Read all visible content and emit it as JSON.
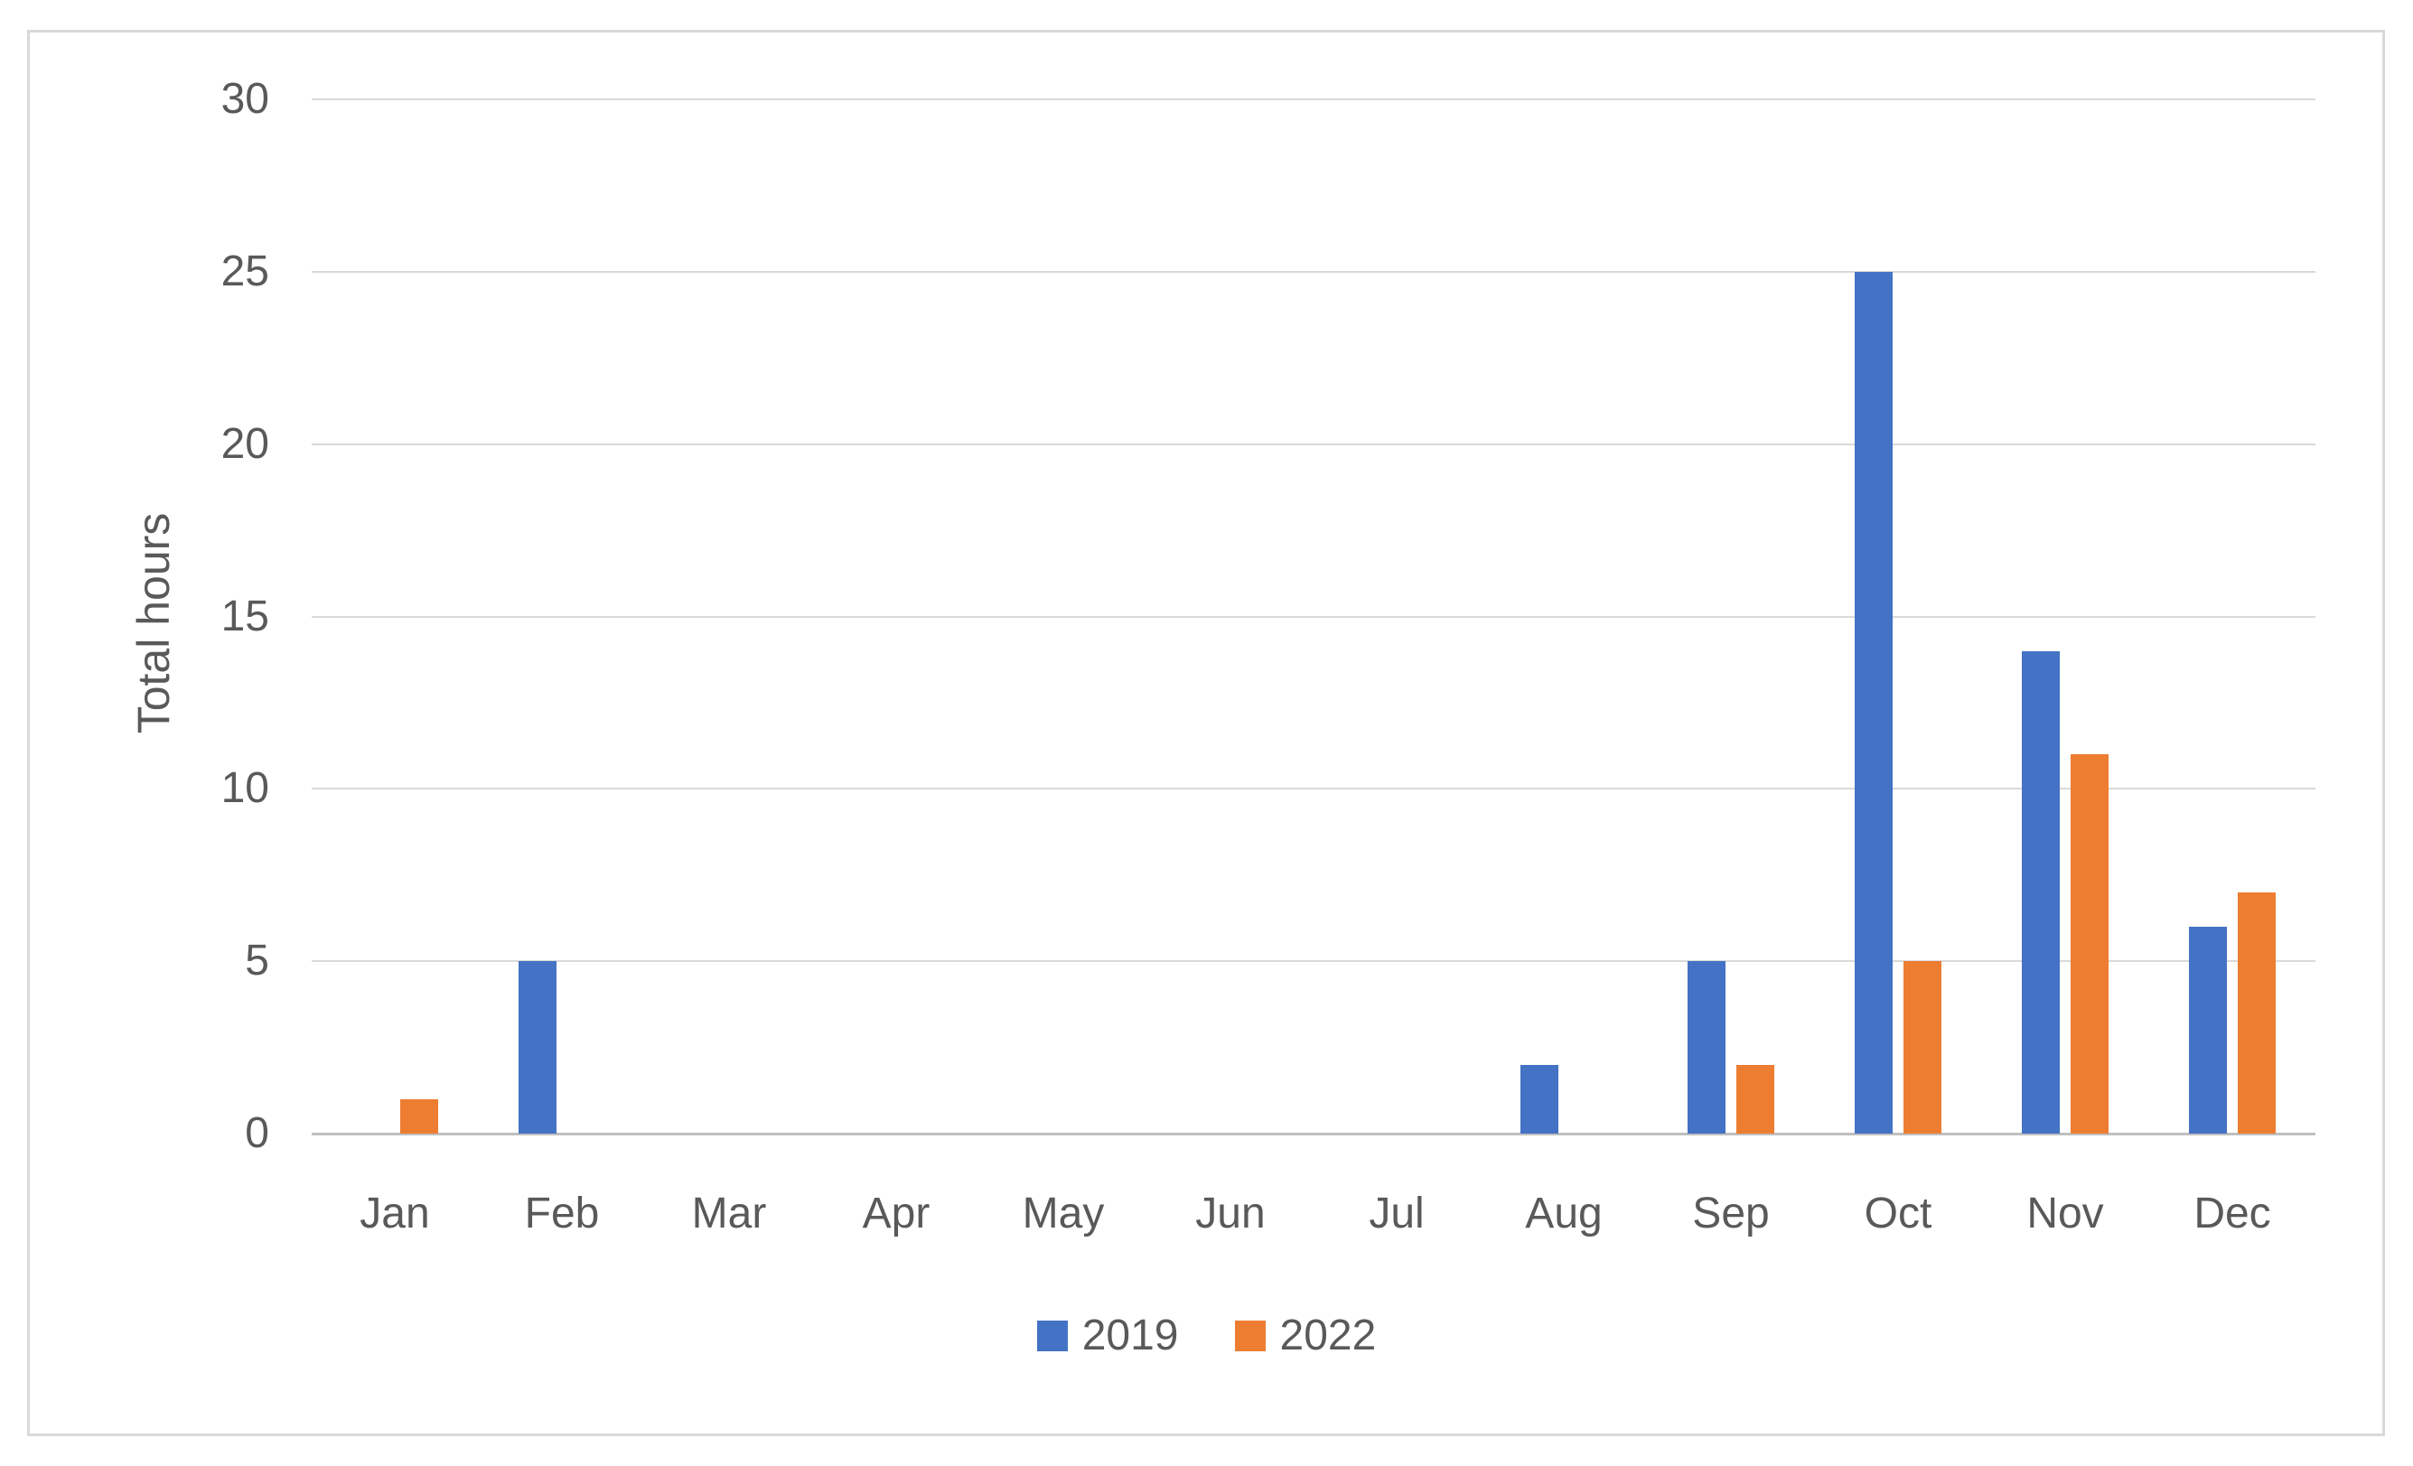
{
  "chart_data": {
    "type": "bar",
    "title": "",
    "xlabel": "",
    "ylabel": "Total hours",
    "categories": [
      "Jan",
      "Feb",
      "Mar",
      "Apr",
      "May",
      "Jun",
      "Jul",
      "Aug",
      "Sep",
      "Oct",
      "Nov",
      "Dec"
    ],
    "series": [
      {
        "name": "2019",
        "color": "#4472C4",
        "values": [
          0,
          5,
          0,
          0,
          0,
          0,
          0,
          2,
          5,
          25,
          14,
          6
        ]
      },
      {
        "name": "2022",
        "color": "#ED7D31",
        "values": [
          1,
          0,
          0,
          0,
          0,
          0,
          0,
          0,
          2,
          5,
          11,
          7
        ]
      }
    ],
    "ylim": [
      0,
      30
    ],
    "yticks": [
      0,
      5,
      10,
      15,
      20,
      25,
      30
    ],
    "grid": true,
    "legend_position": "bottom",
    "colors": {
      "gridline": "#D9D9D9",
      "zero_axis_line": "#BFBFBF",
      "tick_label": "#595959",
      "frame_border": "#D9D9D9",
      "background": "#FFFFFF"
    }
  }
}
